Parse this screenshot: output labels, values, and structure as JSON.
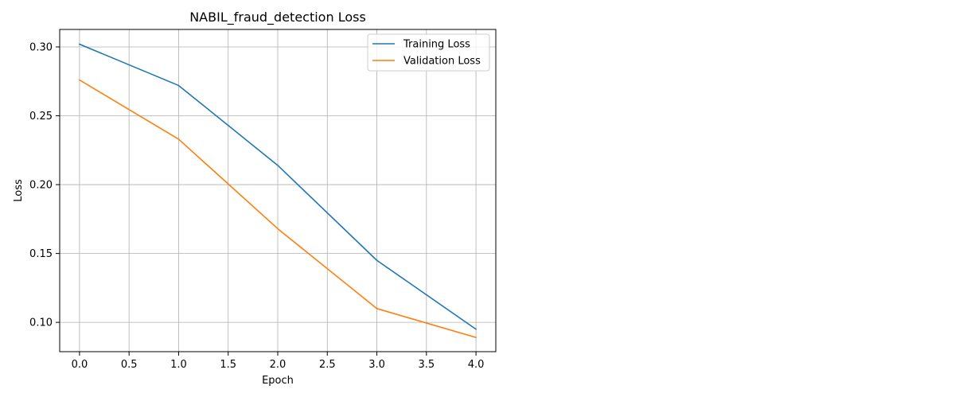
{
  "chart_data": {
    "type": "line",
    "title": "NABIL_fraud_detection Loss",
    "xlabel": "Epoch",
    "ylabel": "Loss",
    "x": [
      0,
      1,
      2,
      3,
      4
    ],
    "series": [
      {
        "name": "Training Loss",
        "values": [
          0.302,
          0.272,
          0.214,
          0.145,
          0.095
        ],
        "color": "#1f77b4"
      },
      {
        "name": "Validation Loss",
        "values": [
          0.276,
          0.233,
          0.168,
          0.11,
          0.089
        ],
        "color": "#ff7f0e"
      }
    ],
    "xlim": [
      -0.2,
      4.2
    ],
    "ylim": [
      0.0787,
      0.3127
    ],
    "xticks": [
      0.0,
      0.5,
      1.0,
      1.5,
      2.0,
      2.5,
      3.0,
      3.5,
      4.0
    ],
    "xtick_labels": [
      "0.0",
      "0.5",
      "1.0",
      "1.5",
      "2.0",
      "2.5",
      "3.0",
      "3.5",
      "4.0"
    ],
    "yticks": [
      0.1,
      0.15,
      0.2,
      0.25,
      0.3
    ],
    "ytick_labels": [
      "0.10",
      "0.15",
      "0.20",
      "0.25",
      "0.30"
    ],
    "grid": true,
    "legend_position": "top-right",
    "grid_color": "#b0b0b0",
    "axis_color": "#000000"
  }
}
